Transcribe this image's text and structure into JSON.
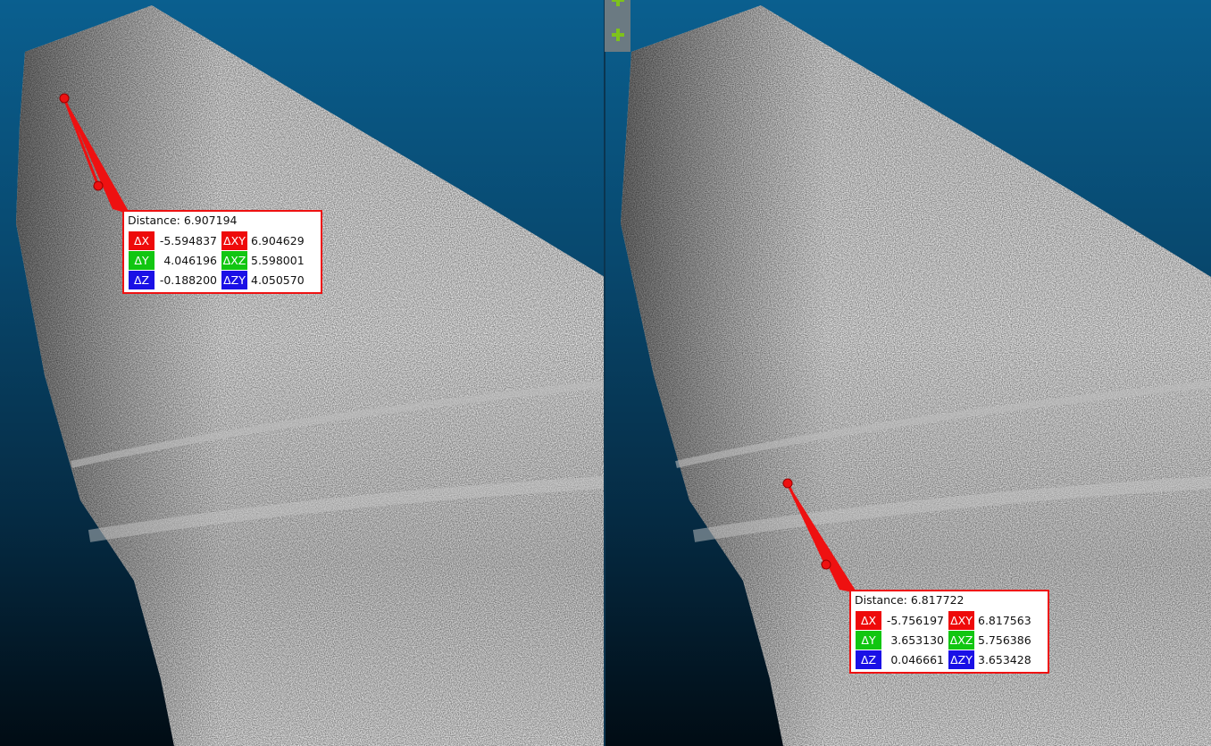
{
  "colors": {
    "sky_top": "#0a5f8f",
    "sky_bottom": "#010c14",
    "measure_red": "#ee1111",
    "dx_tag": "#ee0a0a",
    "dy_tag": "#11c611",
    "dz_tag": "#1a10e6",
    "plus_green": "#7ec21b"
  },
  "toolbar": {
    "icons": [
      "plus-icon",
      "plus-icon"
    ]
  },
  "left_label": {
    "title": "Distance: 6.907194",
    "dx_tag": "ΔX",
    "dx": "-5.594837",
    "dxy_tag": "ΔXY",
    "dxy": "6.904629",
    "dy_tag": "ΔY",
    "dy": "4.046196",
    "dxz_tag": "ΔXZ",
    "dxz": "5.598001",
    "dz_tag": "ΔZ",
    "dz": "-0.188200",
    "dzy_tag": "ΔZY",
    "dzy": "4.050570"
  },
  "right_label": {
    "title": "Distance: 6.817722",
    "dx_tag": "ΔX",
    "dx": "-5.756197",
    "dxy_tag": "ΔXY",
    "dxy": "6.817563",
    "dy_tag": "ΔY",
    "dy": "3.653130",
    "dxz_tag": "ΔXZ",
    "dxz": "5.756386",
    "dz_tag": "ΔZ",
    "dz": "0.046661",
    "dzy_tag": "ΔZY",
    "dzy": "3.653428"
  }
}
